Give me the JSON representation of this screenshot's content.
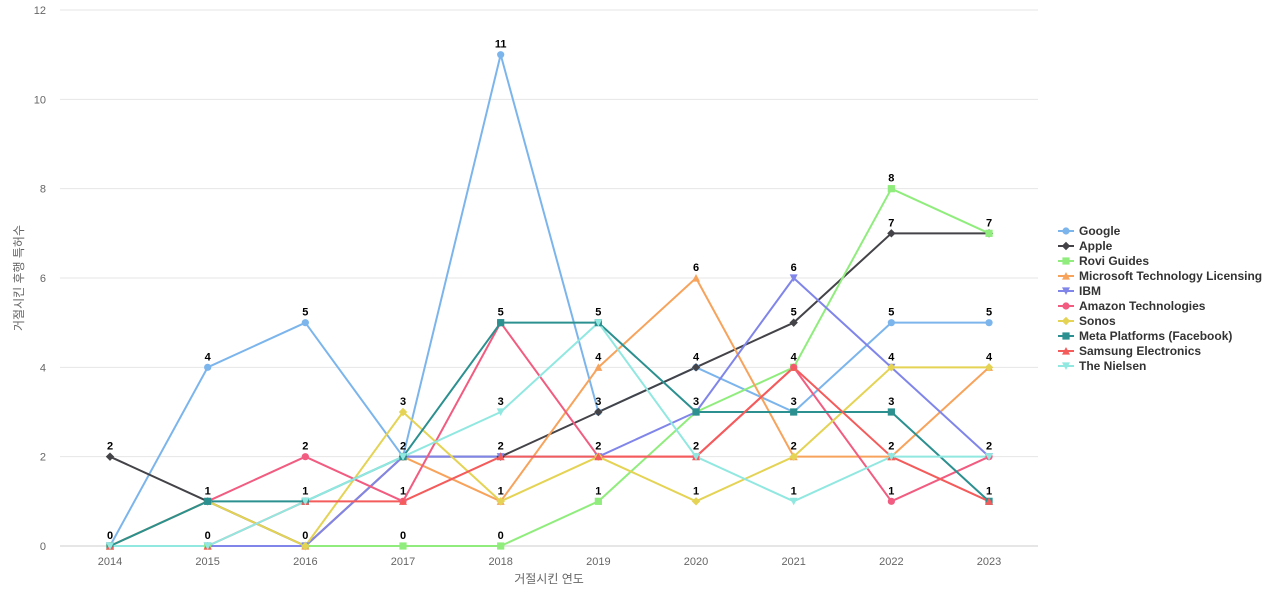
{
  "chart_data": {
    "type": "line",
    "title": "",
    "xlabel": "거절시킨 연도",
    "ylabel": "거절시킨 후행 특허수",
    "categories": [
      "2014",
      "2015",
      "2016",
      "2017",
      "2018",
      "2019",
      "2020",
      "2021",
      "2022",
      "2023"
    ],
    "ylim": [
      0,
      12
    ],
    "yticks": [
      0,
      2,
      4,
      6,
      8,
      10,
      12
    ],
    "grid": true,
    "legend_position": "right",
    "series": [
      {
        "name": "Google",
        "color": "#7cb5ec",
        "marker": "circle",
        "values": [
          0,
          4,
          5,
          2,
          11,
          3,
          4,
          3,
          5,
          5
        ]
      },
      {
        "name": "Apple",
        "color": "#434348",
        "marker": "diamond",
        "values": [
          2,
          1,
          0,
          2,
          2,
          3,
          4,
          5,
          7,
          7
        ]
      },
      {
        "name": "Rovi Guides",
        "color": "#90ed7d",
        "marker": "square",
        "values": [
          0,
          0,
          0,
          0,
          0,
          1,
          3,
          4,
          8,
          7
        ]
      },
      {
        "name": "Microsoft Technology Licensing",
        "color": "#f7a35c",
        "marker": "triangle",
        "values": [
          0,
          0,
          0,
          2,
          1,
          4,
          6,
          2,
          2,
          4
        ]
      },
      {
        "name": "IBM",
        "color": "#8085e9",
        "marker": "triangle-down",
        "values": [
          0,
          0,
          0,
          2,
          2,
          2,
          3,
          6,
          4,
          2
        ]
      },
      {
        "name": "Amazon Technologies",
        "color": "#f15c80",
        "marker": "circle",
        "values": [
          0,
          1,
          2,
          1,
          5,
          2,
          2,
          4,
          1,
          2
        ]
      },
      {
        "name": "Sonos",
        "color": "#e4d354",
        "marker": "diamond",
        "values": [
          0,
          1,
          0,
          3,
          1,
          2,
          1,
          2,
          4,
          4
        ]
      },
      {
        "name": "Meta Platforms (Facebook)",
        "color": "#2b908f",
        "marker": "square",
        "values": [
          0,
          1,
          1,
          2,
          5,
          5,
          3,
          3,
          3,
          1
        ]
      },
      {
        "name": "Samsung Electronics",
        "color": "#f45b5b",
        "marker": "triangle",
        "values": [
          0,
          0,
          1,
          1,
          2,
          2,
          2,
          4,
          2,
          1
        ]
      },
      {
        "name": "The Nielsen",
        "color": "#91e8e1",
        "marker": "triangle-down",
        "values": [
          0,
          0,
          1,
          2,
          3,
          5,
          2,
          1,
          2,
          2
        ]
      }
    ],
    "data_labels": [
      {
        "x": "2014",
        "text": "2",
        "value": 2
      },
      {
        "x": "2014",
        "text": "0",
        "value": 0
      },
      {
        "x": "2015",
        "text": "4",
        "value": 4
      },
      {
        "x": "2015",
        "text": "1",
        "value": 1
      },
      {
        "x": "2015",
        "text": "0",
        "value": 0
      },
      {
        "x": "2016",
        "text": "5",
        "value": 5
      },
      {
        "x": "2016",
        "text": "2",
        "value": 2
      },
      {
        "x": "2016",
        "text": "1",
        "value": 1
      },
      {
        "x": "2016",
        "text": "0",
        "value": 0
      },
      {
        "x": "2017",
        "text": "3",
        "value": 3
      },
      {
        "x": "2017",
        "text": "2",
        "value": 2
      },
      {
        "x": "2017",
        "text": "1",
        "value": 1
      },
      {
        "x": "2017",
        "text": "0",
        "value": 0
      },
      {
        "x": "2018",
        "text": "11",
        "value": 11
      },
      {
        "x": "2018",
        "text": "5",
        "value": 5
      },
      {
        "x": "2018",
        "text": "3",
        "value": 3
      },
      {
        "x": "2018",
        "text": "2",
        "value": 2
      },
      {
        "x": "2018",
        "text": "1",
        "value": 1
      },
      {
        "x": "2018",
        "text": "0",
        "value": 0
      },
      {
        "x": "2019",
        "text": "5",
        "value": 5
      },
      {
        "x": "2019",
        "text": "4",
        "value": 4
      },
      {
        "x": "2019",
        "text": "3",
        "value": 3
      },
      {
        "x": "2019",
        "text": "2",
        "value": 2
      },
      {
        "x": "2019",
        "text": "1",
        "value": 1
      },
      {
        "x": "2020",
        "text": "6",
        "value": 6
      },
      {
        "x": "2020",
        "text": "4",
        "value": 4
      },
      {
        "x": "2020",
        "text": "3",
        "value": 3
      },
      {
        "x": "2020",
        "text": "2",
        "value": 2
      },
      {
        "x": "2020",
        "text": "1",
        "value": 1
      },
      {
        "x": "2021",
        "text": "6",
        "value": 6
      },
      {
        "x": "2021",
        "text": "5",
        "value": 5
      },
      {
        "x": "2021",
        "text": "4",
        "value": 4
      },
      {
        "x": "2021",
        "text": "3",
        "value": 3
      },
      {
        "x": "2021",
        "text": "2",
        "value": 2
      },
      {
        "x": "2021",
        "text": "1",
        "value": 1
      },
      {
        "x": "2022",
        "text": "8",
        "value": 8
      },
      {
        "x": "2022",
        "text": "7",
        "value": 7
      },
      {
        "x": "2022",
        "text": "5",
        "value": 5
      },
      {
        "x": "2022",
        "text": "4",
        "value": 4
      },
      {
        "x": "2022",
        "text": "3",
        "value": 3
      },
      {
        "x": "2022",
        "text": "2",
        "value": 2
      },
      {
        "x": "2022",
        "text": "1",
        "value": 1
      },
      {
        "x": "2023",
        "text": "7",
        "value": 7
      },
      {
        "x": "2023",
        "text": "5",
        "value": 5
      },
      {
        "x": "2023",
        "text": "4",
        "value": 4
      },
      {
        "x": "2023",
        "text": "2",
        "value": 2
      },
      {
        "x": "2023",
        "text": "1",
        "value": 1
      }
    ]
  }
}
